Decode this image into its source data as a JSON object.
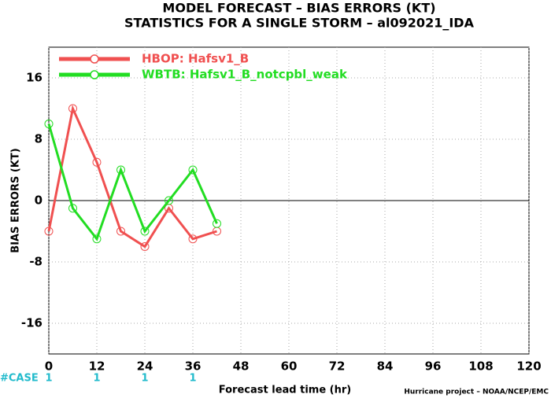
{
  "chart_data": {
    "type": "line",
    "title": "MODEL FORECAST – BIAS ERRORS (KT)",
    "subtitle": "STATISTICS FOR A SINGLE STORM – al092021_IDA",
    "x_label": "Forecast lead time (hr)",
    "y_label": "BIAS ERRORS (KT)",
    "footer": "Hurricane project – NOAA/NCEP/EMC",
    "x": [
      0,
      6,
      12,
      18,
      24,
      30,
      36,
      42
    ],
    "series": [
      {
        "name": "HBOP: Hafsv1_B",
        "color": "#f05050",
        "values": [
          -4,
          12,
          5,
          -4,
          -6,
          -1,
          -5,
          -4
        ]
      },
      {
        "name": "WBTB: Hafsv1_B_notcpbl_weak",
        "color": "#22dd22",
        "values": [
          10,
          -1,
          -5,
          4,
          -4,
          0,
          4,
          -3
        ]
      }
    ],
    "xlim": [
      0,
      120
    ],
    "xticks": [
      0,
      12,
      24,
      36,
      48,
      60,
      72,
      84,
      96,
      108,
      120
    ],
    "ylim": [
      -20,
      20
    ],
    "yticks": [
      -16,
      -8,
      0,
      8,
      16
    ],
    "grid": true,
    "cases": {
      "label": "#CASE",
      "x": [
        0,
        12,
        24,
        36
      ],
      "values": [
        1,
        1,
        1,
        1
      ],
      "color": "#22bbcc"
    }
  }
}
